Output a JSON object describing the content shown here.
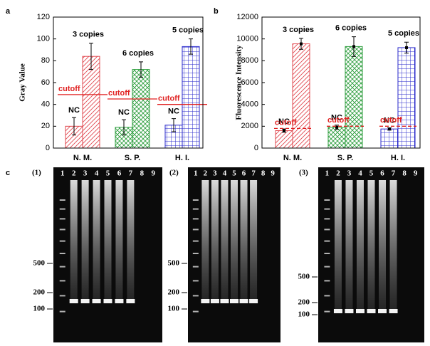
{
  "chart_data": [
    {
      "type": "bar",
      "label": "a",
      "ylabel": "Gray  Value",
      "categories": [
        "N. M.",
        "S. P.",
        "H. I."
      ],
      "colors": [
        "#e0484f",
        "#2e9e3e",
        "#2a2acb"
      ],
      "ylim": [
        0,
        120
      ],
      "yticks": [
        0,
        20,
        40,
        60,
        80,
        100,
        120
      ],
      "series": [
        {
          "values": [
            20,
            19,
            21
          ],
          "errors": [
            8,
            7,
            6
          ]
        },
        {
          "values": [
            84,
            72,
            93
          ],
          "errors": [
            12,
            7,
            7
          ]
        }
      ],
      "nc_labels": [
        "NC",
        "NC",
        "NC"
      ],
      "copy_labels": [
        "3 copies",
        "6 copies",
        "5 copies"
      ],
      "cutoff_labels": [
        "cutoff",
        "cutoff",
        "cutoff"
      ],
      "cutoff_values": [
        49,
        45,
        40
      ]
    },
    {
      "type": "bar",
      "label": "b",
      "ylabel": "Fluorescence  Intensity",
      "categories": [
        "N. M.",
        "S. P.",
        "H. I."
      ],
      "colors": [
        "#e0484f",
        "#2e9e3e",
        "#2a2acb"
      ],
      "ylim": [
        0,
        12000
      ],
      "yticks": [
        0,
        2000,
        4000,
        6000,
        8000,
        10000,
        12000
      ],
      "series": [
        {
          "values": [
            1600,
            1900,
            1750
          ],
          "errors": [
            150,
            200,
            100
          ]
        },
        {
          "values": [
            9550,
            9300,
            9200
          ],
          "errors": [
            500,
            900,
            500
          ]
        }
      ],
      "nc_labels": [
        "NC",
        "NC",
        "NC"
      ],
      "copy_labels": [
        "3 copies",
        "6 copies",
        "5 copies"
      ],
      "cutoff_labels": [
        "cutoff",
        "cutoff",
        "cutoff"
      ],
      "cutoff_values": [
        1800,
        2000,
        2000
      ]
    }
  ],
  "gels": {
    "label": "c",
    "panels": [
      {
        "label": "(1)",
        "lanes": [
          "1",
          "2",
          "3",
          "4",
          "5",
          "6",
          "7",
          "8",
          "9"
        ],
        "markers": [
          500,
          200,
          100
        ]
      },
      {
        "label": "(2)",
        "lanes": [
          "1",
          "2",
          "3",
          "4",
          "5",
          "6",
          "7",
          "8",
          "9"
        ],
        "markers": [
          500,
          200,
          100
        ]
      },
      {
        "label": "(3)",
        "lanes": [
          "1",
          "2",
          "3",
          "4",
          "5",
          "6",
          "7",
          "8",
          "9"
        ],
        "markers": [
          500,
          200,
          100
        ]
      }
    ]
  }
}
